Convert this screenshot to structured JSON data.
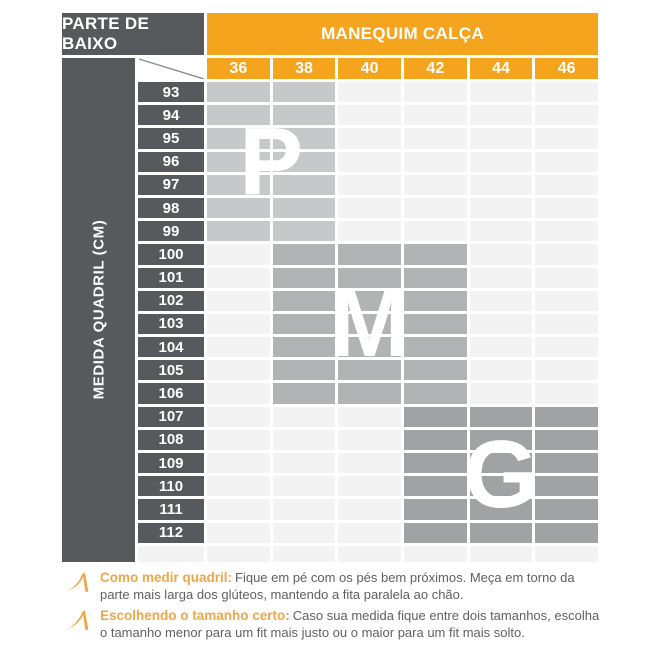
{
  "colors": {
    "orange": "#F5A51D",
    "dark": "#58595C",
    "cell_p": "#C7C8CA",
    "cell_m": "#B2B3B5",
    "cell_g": "#A1A2A4",
    "cell_empty": "#F3F3F4",
    "note_accent": "#EFA648",
    "note_text": "#5F6062"
  },
  "header": {
    "left_title": "PARTE DE BAIXO",
    "right_title": "MANEQUIM CALÇA"
  },
  "side_label": "MEDIDA QUADRIL (CM)",
  "chart_data": {
    "type": "table",
    "title": "MANEQUIM CALÇA",
    "row_axis_label": "MEDIDA QUADRIL (CM)",
    "columns": [
      "36",
      "38",
      "40",
      "42",
      "44",
      "46"
    ],
    "rows": [
      {
        "label": "93",
        "cells": [
          "P",
          "P",
          "",
          "",
          "",
          ""
        ]
      },
      {
        "label": "94",
        "cells": [
          "P",
          "P",
          "",
          "",
          "",
          ""
        ]
      },
      {
        "label": "95",
        "cells": [
          "P",
          "P",
          "",
          "",
          "",
          ""
        ]
      },
      {
        "label": "96",
        "cells": [
          "P",
          "P",
          "",
          "",
          "",
          ""
        ]
      },
      {
        "label": "97",
        "cells": [
          "P",
          "P",
          "",
          "",
          "",
          ""
        ]
      },
      {
        "label": "98",
        "cells": [
          "P",
          "P",
          "",
          "",
          "",
          ""
        ]
      },
      {
        "label": "99",
        "cells": [
          "P",
          "P",
          "",
          "",
          "",
          ""
        ]
      },
      {
        "label": "100",
        "cells": [
          "",
          "M",
          "M",
          "M",
          "",
          ""
        ]
      },
      {
        "label": "101",
        "cells": [
          "",
          "M",
          "M",
          "M",
          "",
          ""
        ]
      },
      {
        "label": "102",
        "cells": [
          "",
          "M",
          "M",
          "M",
          "",
          ""
        ]
      },
      {
        "label": "103",
        "cells": [
          "",
          "M",
          "M",
          "M",
          "",
          ""
        ]
      },
      {
        "label": "104",
        "cells": [
          "",
          "M",
          "M",
          "M",
          "",
          ""
        ]
      },
      {
        "label": "105",
        "cells": [
          "",
          "M",
          "M",
          "M",
          "",
          ""
        ]
      },
      {
        "label": "106",
        "cells": [
          "",
          "M",
          "M",
          "M",
          "",
          ""
        ]
      },
      {
        "label": "107",
        "cells": [
          "",
          "",
          "",
          "G",
          "G",
          "G"
        ]
      },
      {
        "label": "108",
        "cells": [
          "",
          "",
          "",
          "G",
          "G",
          "G"
        ]
      },
      {
        "label": "109",
        "cells": [
          "",
          "",
          "",
          "G",
          "G",
          "G"
        ]
      },
      {
        "label": "110",
        "cells": [
          "",
          "",
          "",
          "G",
          "G",
          "G"
        ]
      },
      {
        "label": "111",
        "cells": [
          "",
          "",
          "",
          "G",
          "G",
          "G"
        ]
      },
      {
        "label": "112",
        "cells": [
          "",
          "",
          "",
          "G",
          "G",
          "G"
        ]
      }
    ],
    "regions": [
      {
        "letter": "P",
        "row_start": "93",
        "row_end": "99",
        "col_start": "36",
        "col_end": "38"
      },
      {
        "letter": "M",
        "row_start": "100",
        "row_end": "106",
        "col_start": "38",
        "col_end": "42"
      },
      {
        "letter": "G",
        "row_start": "107",
        "row_end": "112",
        "col_start": "42",
        "col_end": "46"
      }
    ]
  },
  "notes": [
    {
      "title": "Como medir quadril:",
      "text": "Fique em pé com os pés bem próximos. Meça em torno da parte mais larga dos glúteos, mantendo a fita paralela ao chão."
    },
    {
      "title": "Escolhendo o tamanho certo:",
      "text": "Caso sua medida fique entre dois tamanhos, escolha o tamanho menor para um fit mais justo ou o maior para um fit mais solto."
    }
  ]
}
